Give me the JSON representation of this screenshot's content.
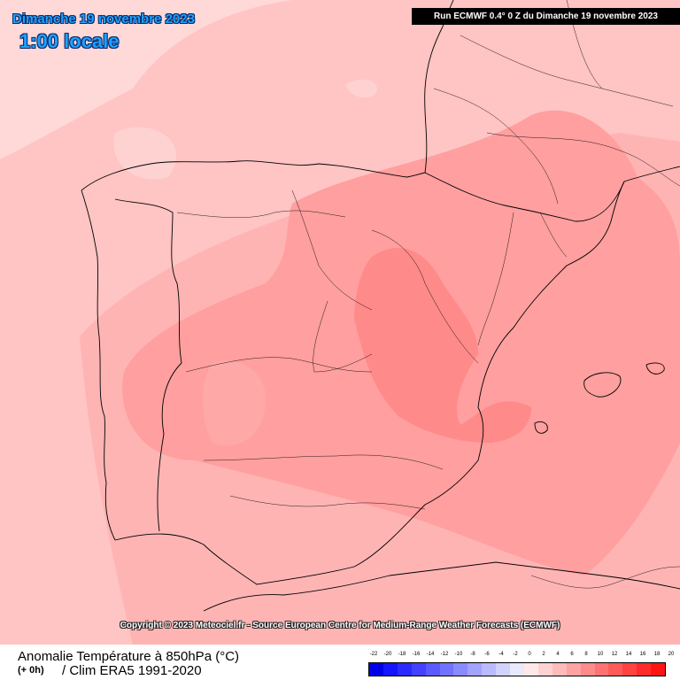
{
  "header": {
    "date_title": "Dimanche 19 novembre 2023",
    "time_title": "1:00 locale",
    "run_info": "Run ECMWF 0.4° 0 Z du Dimanche 19 novembre 2023"
  },
  "copyright": "Copyright © 2023 Meteociel.fr - Source European Centre for Medium-Range Weather Forecasts (ECMWF)",
  "footer": {
    "variable_title": "Anomalie Température à 850hPa (°C)",
    "lead_time": "(+ 0h)",
    "climatology": "/ Clim ERA5 1991-2020"
  },
  "colors": {
    "sea_light": "#ffdcdc",
    "level_0_2": "#ffc6c6",
    "level_2_4": "#ffb2b2",
    "level_4_6": "#ff9c9c",
    "level_6_8": "#ff8585",
    "border_lines": "#000000"
  },
  "legend": {
    "labels": [
      "-22",
      "-20",
      "-18",
      "-16",
      "-14",
      "-12",
      "-10",
      "-8",
      "-6",
      "-4",
      "-2",
      "0",
      "2",
      "4",
      "6",
      "8",
      "10",
      "12",
      "14",
      "16",
      "18",
      "20"
    ],
    "colors": [
      "#0000e6",
      "#1414ff",
      "#2b2bff",
      "#4242ff",
      "#5a5aff",
      "#7272ff",
      "#8a8aff",
      "#a2a2ff",
      "#babaff",
      "#d2d2ff",
      "#e8e8ff",
      "#ffe8e8",
      "#ffd2d2",
      "#ffbaba",
      "#ffa2a2",
      "#ff8a8a",
      "#ff7272",
      "#ff5a5a",
      "#ff4242",
      "#ff2b2b",
      "#ff1414"
    ]
  }
}
